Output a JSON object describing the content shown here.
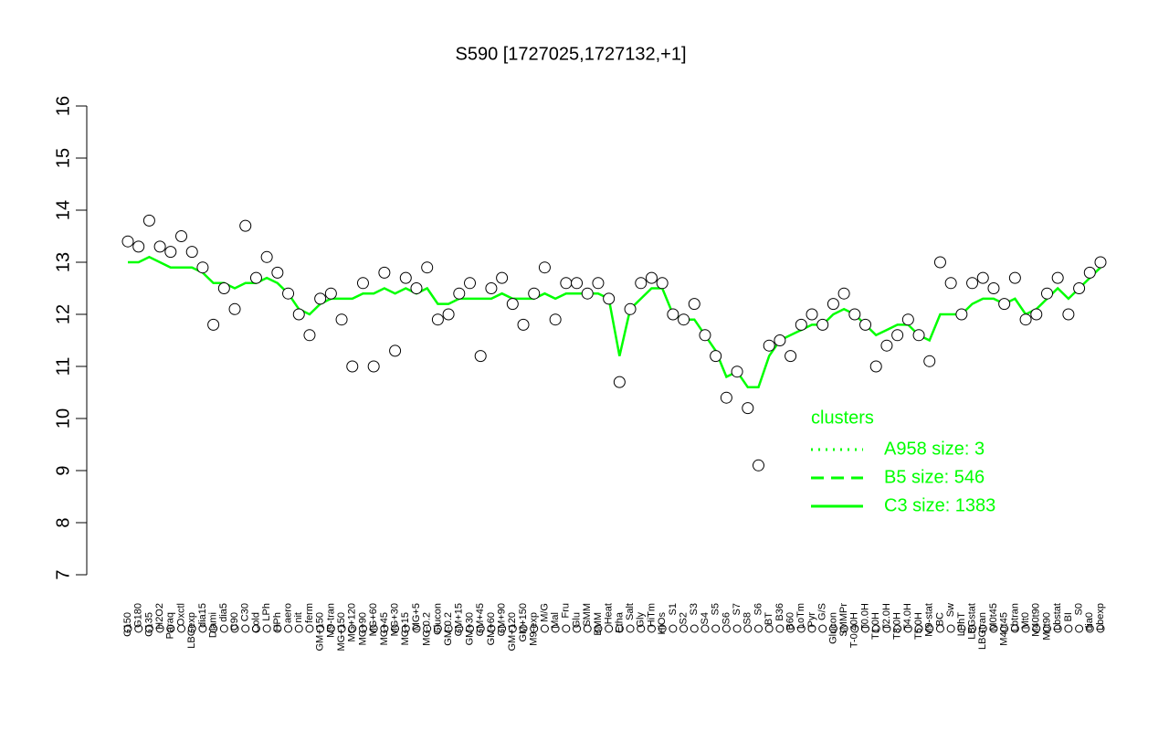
{
  "chart_data": {
    "type": "scatter",
    "title": "S590 [1727025,1727132,+1]",
    "categories": [
      "G150",
      "G180",
      "G135",
      "H2O2",
      "Paraq",
      "Oxctl",
      "LBGexp",
      "dia15",
      "Diami",
      "dia5",
      "C90",
      "C30",
      "Cold",
      "LPh",
      "HPh",
      "aero",
      "nit",
      "ferm",
      "GM+150",
      "M9-tran",
      "MG+150",
      "MG+120",
      "MG+90",
      "MG+60",
      "MG+45",
      "MG+30",
      "MG+15",
      "MG+5",
      "MG-0.2",
      "Glucon",
      "GM-0.2",
      "GM+15",
      "GM+30",
      "GM+45",
      "GM+60",
      "GM+90",
      "GM+120",
      "GM+150",
      "M9-exp",
      "M/G",
      "Mal",
      "Fru",
      "Glu",
      "SMM",
      "BMM",
      "Heat",
      "Etha",
      "Salt",
      "Gly",
      "HiTm",
      "HiOs",
      "S1",
      "S2",
      "S3",
      "S4",
      "S5",
      "S6",
      "S7",
      "S8",
      "S6",
      "BT",
      "B36",
      "B60",
      "LoTm",
      "Pyr",
      "G/S",
      "Glucon",
      "SMMPr",
      "T-0.40H",
      "T0.0H",
      "T1.0H",
      "T2.0H",
      "T3.0H",
      "T4.0H",
      "T5.0H",
      "M9-stat",
      "BC",
      "Sw",
      "LPhT",
      "LBGstat",
      "LBGtran",
      "M0t45",
      "M40t45",
      "Lbtran",
      "Mt0",
      "M40t90",
      "M0t90",
      "Lbstat",
      "BI",
      "S0",
      "dia0",
      "Lbexp"
    ],
    "values": [
      13.4,
      13.3,
      13.8,
      13.3,
      13.2,
      13.5,
      13.2,
      12.9,
      11.8,
      12.5,
      12.1,
      13.7,
      12.7,
      13.1,
      12.8,
      12.4,
      12.0,
      11.6,
      12.3,
      12.4,
      11.9,
      11.0,
      12.6,
      11.0,
      12.8,
      11.3,
      12.7,
      12.5,
      12.9,
      11.9,
      12.0,
      12.4,
      12.6,
      11.2,
      12.5,
      12.7,
      12.2,
      11.8,
      12.4,
      12.9,
      11.9,
      12.6,
      12.6,
      12.4,
      12.6,
      12.3,
      10.7,
      12.1,
      12.6,
      12.7,
      12.6,
      12.0,
      11.9,
      12.2,
      11.6,
      11.2,
      10.4,
      10.9,
      10.2,
      9.1,
      11.4,
      11.5,
      11.2,
      11.8,
      12.0,
      11.8,
      12.2,
      12.4,
      12.0,
      11.8,
      11.0,
      11.4,
      11.6,
      11.9,
      11.6,
      11.1,
      13.0,
      12.6,
      12.0,
      12.6,
      12.7,
      12.5,
      12.2,
      12.7,
      11.9,
      12.0,
      12.4,
      12.7,
      12.0,
      12.5,
      12.8,
      13.0
    ],
    "series": [
      {
        "name": "C3 size: 1383",
        "color": "#00ff00",
        "values": [
          13.0,
          13.0,
          13.1,
          13.0,
          12.9,
          12.9,
          12.9,
          12.8,
          12.6,
          12.6,
          12.5,
          12.6,
          12.6,
          12.7,
          12.6,
          12.4,
          12.1,
          12.0,
          12.2,
          12.3,
          12.3,
          12.3,
          12.4,
          12.4,
          12.5,
          12.4,
          12.5,
          12.4,
          12.5,
          12.2,
          12.2,
          12.3,
          12.3,
          12.3,
          12.3,
          12.4,
          12.3,
          12.3,
          12.3,
          12.4,
          12.3,
          12.4,
          12.4,
          12.4,
          12.4,
          12.3,
          11.2,
          12.1,
          12.3,
          12.5,
          12.5,
          12.0,
          11.9,
          11.9,
          11.6,
          11.3,
          10.8,
          10.9,
          10.6,
          10.6,
          11.2,
          11.5,
          11.6,
          11.7,
          11.8,
          11.8,
          12.0,
          12.1,
          12.0,
          11.8,
          11.6,
          11.7,
          11.8,
          11.8,
          11.6,
          11.5,
          12.0,
          12.0,
          12.0,
          12.2,
          12.3,
          12.3,
          12.2,
          12.3,
          12.0,
          12.1,
          12.3,
          12.5,
          12.3,
          12.5,
          12.7,
          12.9
        ]
      }
    ],
    "legend": {
      "title": "clusters",
      "color": "#00ff00",
      "entries": [
        {
          "name": "A958 size: 3",
          "dash": "2,6"
        },
        {
          "name": "B5 size: 546",
          "dash": "14,8"
        },
        {
          "name": "C3 size: 1383",
          "dash": "none"
        }
      ]
    },
    "ylim": [
      7,
      16
    ],
    "yticks": [
      7,
      8,
      9,
      10,
      11,
      12,
      13,
      14,
      15,
      16
    ]
  }
}
